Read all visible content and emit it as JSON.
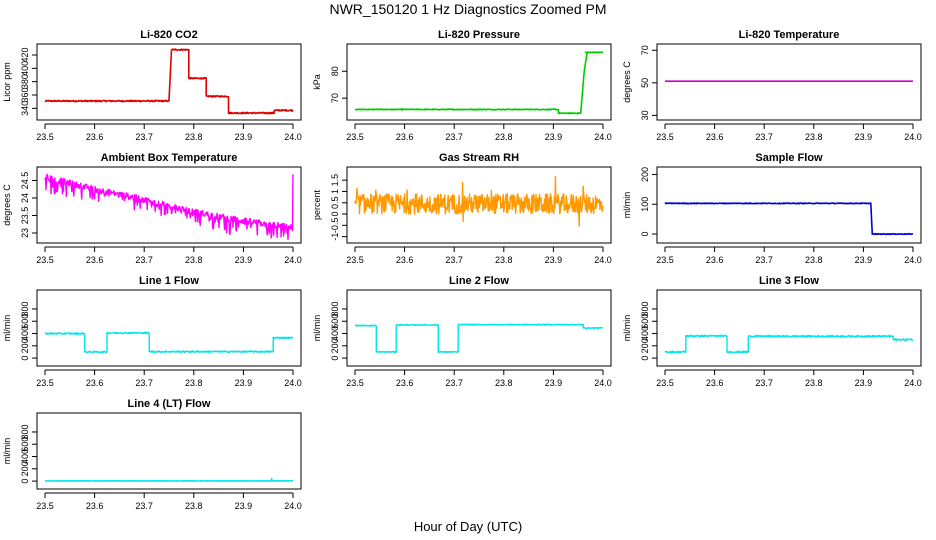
{
  "title": "NWR_150120  1 Hz Diagnostics Zoomed PM",
  "xlabel": "Hour of Day (UTC)",
  "chart_data": [
    {
      "id": "co2",
      "type": "line",
      "title": "Li-820 CO2",
      "ylabel": "Licor ppm",
      "color": "#dd0000",
      "xlim": [
        23.5,
        24.0
      ],
      "ylim": [
        327,
        432
      ],
      "yticks": [
        340,
        360,
        380,
        400,
        420
      ],
      "xticks": [
        23.5,
        23.6,
        23.7,
        23.8,
        23.9,
        24.0
      ],
      "segments": [
        [
          23.5,
          23.75,
          351
        ],
        [
          23.755,
          23.79,
          428
        ],
        [
          23.79,
          23.825,
          385
        ],
        [
          23.825,
          23.87,
          358
        ],
        [
          23.87,
          23.962,
          333
        ],
        [
          23.962,
          24.0,
          337
        ]
      ],
      "noise": 1.0
    },
    {
      "id": "pressure",
      "type": "line",
      "title": "Li-820 Pressure",
      "ylabel": "kPa",
      "color": "#00cc00",
      "xlim": [
        23.5,
        24.0
      ],
      "ylim": [
        63,
        89
      ],
      "yticks": [
        70,
        80
      ],
      "xticks": [
        23.5,
        23.6,
        23.7,
        23.8,
        23.9,
        24.0
      ],
      "segments": [
        [
          23.5,
          23.91,
          65.8
        ],
        [
          23.91,
          23.955,
          64.4
        ],
        [
          23.965,
          24.0,
          87
        ]
      ],
      "ramp": [
        [
          23.955,
          64.4
        ],
        [
          23.962,
          80
        ],
        [
          23.968,
          86.8
        ]
      ],
      "noise": 0.15
    },
    {
      "id": "licor_temp",
      "type": "line",
      "title": "Li-820 Temperature",
      "ylabel": "degrees C",
      "color": "#cc00cc",
      "xlim": [
        23.5,
        24.0
      ],
      "ylim": [
        29,
        72
      ],
      "yticks": [
        30,
        50,
        70
      ],
      "xticks": [
        23.5,
        23.6,
        23.7,
        23.8,
        23.9,
        24.0
      ],
      "segments": [
        [
          23.5,
          24.0,
          51
        ]
      ],
      "noise": 0
    },
    {
      "id": "box_temp",
      "type": "line",
      "title": "Ambient Box Temperature",
      "ylabel": "degrees C",
      "color": "#ff00ff",
      "xlim": [
        23.5,
        24.0
      ],
      "ylim": [
        22.8,
        24.8
      ],
      "yticks": [
        23.0,
        23.5,
        24.0,
        24.5
      ],
      "xticks": [
        23.5,
        23.6,
        23.7,
        23.8,
        23.9,
        24.0
      ],
      "trend": [
        [
          23.5,
          24.6
        ],
        [
          23.6,
          24.25
        ],
        [
          23.7,
          23.95
        ],
        [
          23.8,
          23.6
        ],
        [
          23.9,
          23.35
        ],
        [
          24.0,
          23.15
        ]
      ],
      "noise": 0.18,
      "spiky": true
    },
    {
      "id": "rh",
      "type": "line",
      "title": "Gas Stream RH",
      "ylabel": "percent",
      "color": "#ff9900",
      "xlim": [
        23.5,
        24.0
      ],
      "ylim": [
        -1.15,
        1.95
      ],
      "yticks": [
        -1.0,
        -0.5,
        0.0,
        0.5,
        1.0,
        1.5
      ],
      "xticks": [
        23.5,
        23.6,
        23.7,
        23.8,
        23.9,
        24.0
      ],
      "segments": [
        [
          23.5,
          24.0,
          0.45
        ]
      ],
      "noise": 0.45,
      "spiky": true
    },
    {
      "id": "sample_flow",
      "type": "line",
      "title": "Sample Flow",
      "ylabel": "ml/min",
      "color": "#0000dd",
      "xlim": [
        23.5,
        24.0
      ],
      "ylim": [
        -20,
        215
      ],
      "yticks": [
        0,
        100,
        200
      ],
      "xticks": [
        23.5,
        23.6,
        23.7,
        23.8,
        23.9,
        24.0
      ],
      "segments": [
        [
          23.5,
          23.915,
          103
        ],
        [
          23.918,
          24.0,
          0
        ]
      ],
      "noise": 1.2
    },
    {
      "id": "line1",
      "type": "line",
      "title": "Line 1 Flow",
      "ylabel": "ml/min",
      "color": "#00e5ee",
      "xlim": [
        23.5,
        24.0
      ],
      "ylim": [
        -80,
        1060
      ],
      "yticks": [
        0,
        200,
        400,
        600,
        800
      ],
      "xticks": [
        23.5,
        23.6,
        23.7,
        23.8,
        23.9,
        24.0
      ],
      "segments": [
        [
          23.5,
          23.58,
          400
        ],
        [
          23.58,
          23.625,
          100
        ],
        [
          23.625,
          23.71,
          410
        ],
        [
          23.71,
          23.96,
          105
        ],
        [
          23.96,
          24.0,
          330
        ]
      ],
      "noise": 12
    },
    {
      "id": "line2",
      "type": "line",
      "title": "Line 2 Flow",
      "ylabel": "ml/min",
      "color": "#00e5ee",
      "xlim": [
        23.5,
        24.0
      ],
      "ylim": [
        -80,
        1060
      ],
      "yticks": [
        0,
        200,
        400,
        600,
        800
      ],
      "xticks": [
        23.5,
        23.6,
        23.7,
        23.8,
        23.9,
        24.0
      ],
      "segments": [
        [
          23.5,
          23.543,
          530
        ],
        [
          23.543,
          23.583,
          100
        ],
        [
          23.583,
          23.668,
          540
        ],
        [
          23.668,
          23.708,
          100
        ],
        [
          23.708,
          23.96,
          545
        ],
        [
          23.96,
          24.0,
          490
        ]
      ],
      "noise": 8
    },
    {
      "id": "line3",
      "type": "line",
      "title": "Line 3 Flow",
      "ylabel": "ml/min",
      "color": "#00e5ee",
      "xlim": [
        23.5,
        24.0
      ],
      "ylim": [
        -80,
        1060
      ],
      "yticks": [
        0,
        200,
        400,
        600,
        800
      ],
      "xticks": [
        23.5,
        23.6,
        23.7,
        23.8,
        23.9,
        24.0
      ],
      "segments": [
        [
          23.5,
          23.542,
          100
        ],
        [
          23.542,
          23.625,
          360
        ],
        [
          23.625,
          23.668,
          100
        ],
        [
          23.668,
          23.96,
          355
        ],
        [
          23.96,
          24.0,
          300
        ]
      ],
      "noise": 14
    },
    {
      "id": "line4",
      "type": "line",
      "title": "Line 4 (LT) Flow",
      "ylabel": "ml/min",
      "color": "#00e5ee",
      "xlim": [
        23.5,
        24.0
      ],
      "ylim": [
        -80,
        1060
      ],
      "yticks": [
        0,
        200,
        400,
        600,
        800
      ],
      "xticks": [
        23.5,
        23.6,
        23.7,
        23.8,
        23.9,
        24.0
      ],
      "segments": [
        [
          23.5,
          24.0,
          3
        ]
      ],
      "noise": 1.5,
      "blip": [
        23.957,
        40
      ]
    }
  ]
}
